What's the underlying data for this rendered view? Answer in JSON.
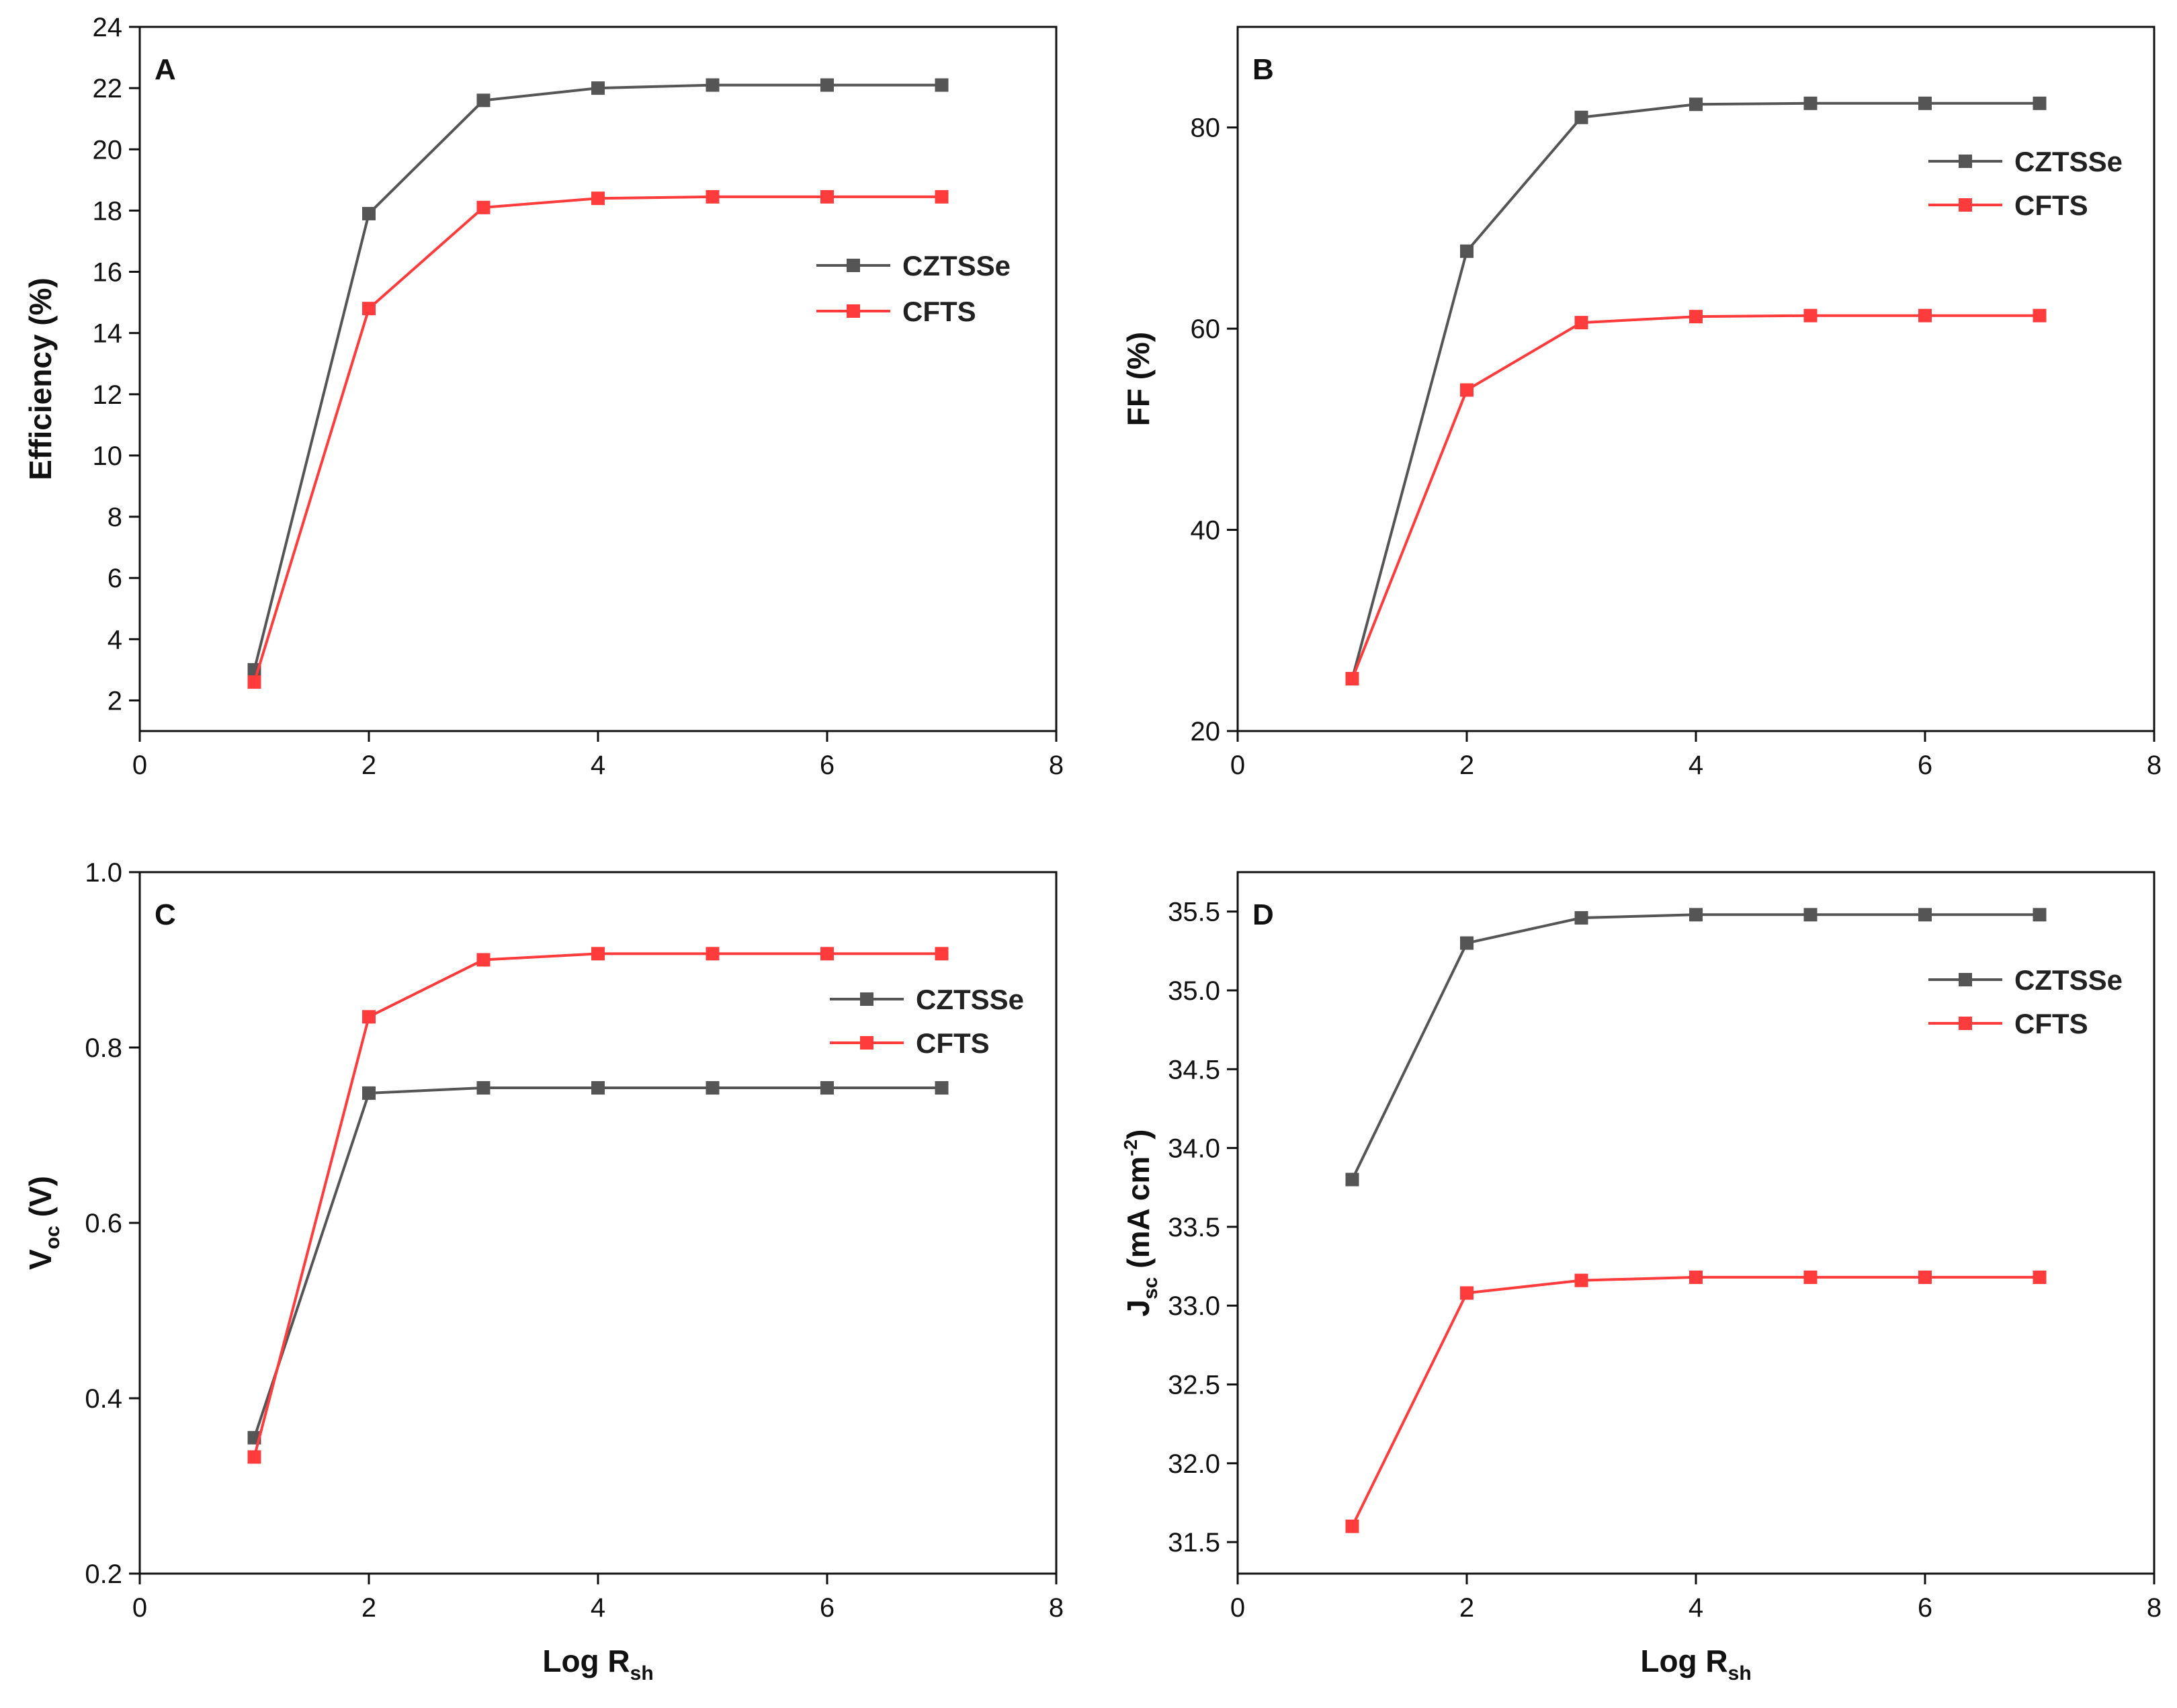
{
  "chart_data": [
    {
      "type": "line",
      "panel": "A",
      "title": "",
      "xlabel": "Log Rsh",
      "xlabel_main": "Log R",
      "xlabel_sub": "sh",
      "ylabel": "Efficiency (%)",
      "xlim": [
        0,
        8
      ],
      "ylim": [
        1,
        24
      ],
      "x_ticks": [
        0,
        2,
        4,
        6,
        8
      ],
      "y_ticks": [
        2,
        4,
        6,
        8,
        10,
        12,
        14,
        16,
        18,
        20,
        22,
        24
      ],
      "x": [
        1,
        2,
        3,
        4,
        5,
        6,
        7
      ],
      "series": [
        {
          "name": "CZTSSe",
          "color": "#555555",
          "values": [
            3.0,
            17.9,
            21.6,
            22.0,
            22.1,
            22.1,
            22.1
          ]
        },
        {
          "name": "CFTS",
          "color": "#ff3b3b",
          "values": [
            2.6,
            14.8,
            18.1,
            18.4,
            18.45,
            18.45,
            18.45
          ]
        }
      ],
      "legend_position": "right"
    },
    {
      "type": "line",
      "panel": "B",
      "title": "",
      "xlabel": "",
      "ylabel": "FF (%)",
      "xlim": [
        0,
        8
      ],
      "ylim": [
        20,
        90
      ],
      "x_ticks": [
        0,
        2,
        4,
        6,
        8
      ],
      "y_ticks": [
        20,
        40,
        60,
        80
      ],
      "x": [
        1,
        2,
        3,
        4,
        5,
        6,
        7
      ],
      "series": [
        {
          "name": "CZTSSe",
          "color": "#555555",
          "values": [
            25.2,
            67.7,
            81.0,
            82.3,
            82.4,
            82.4,
            82.4
          ]
        },
        {
          "name": "CFTS",
          "color": "#ff3b3b",
          "values": [
            25.2,
            53.9,
            60.6,
            61.2,
            61.3,
            61.3,
            61.3
          ]
        }
      ],
      "legend_position": "top-right"
    },
    {
      "type": "line",
      "panel": "C",
      "title": "",
      "xlabel": "Log Rsh",
      "xlabel_main": "Log R",
      "xlabel_sub": "sh",
      "ylabel": "Voc (V)",
      "ylabel_main": "V",
      "ylabel_sub": "oc",
      "ylabel_tail": " (V)",
      "xlim": [
        0,
        8
      ],
      "ylim": [
        0.2,
        1.0
      ],
      "x_ticks": [
        0,
        2,
        4,
        6,
        8
      ],
      "y_ticks": [
        0.2,
        0.4,
        0.6,
        0.8,
        1.0
      ],
      "x": [
        1,
        2,
        3,
        4,
        5,
        6,
        7
      ],
      "series": [
        {
          "name": "CZTSSe",
          "color": "#555555",
          "values": [
            0.355,
            0.748,
            0.754,
            0.754,
            0.754,
            0.754,
            0.754
          ]
        },
        {
          "name": "CFTS",
          "color": "#ff3b3b",
          "values": [
            0.333,
            0.835,
            0.9,
            0.907,
            0.907,
            0.907,
            0.907
          ]
        }
      ],
      "legend_position": "top-right"
    },
    {
      "type": "line",
      "panel": "D",
      "title": "",
      "xlabel": "Log Rsh",
      "xlabel_main": "Log R",
      "xlabel_sub": "sh",
      "ylabel": "Jsc (mA cm-2)",
      "ylabel_main": "J",
      "ylabel_sub": "sc",
      "ylabel_mid": " (mA cm",
      "ylabel_sup": "-2",
      "ylabel_tail": ")",
      "xlim": [
        0,
        8
      ],
      "ylim": [
        31.3,
        35.75
      ],
      "x_ticks": [
        0,
        2,
        4,
        6,
        8
      ],
      "y_ticks": [
        31.5,
        32.0,
        32.5,
        33.0,
        33.5,
        34.0,
        34.5,
        35.0,
        35.5
      ],
      "x": [
        1,
        2,
        3,
        4,
        5,
        6,
        7
      ],
      "series": [
        {
          "name": "CZTSSe",
          "color": "#555555",
          "values": [
            33.8,
            35.3,
            35.46,
            35.48,
            35.48,
            35.48,
            35.48
          ]
        },
        {
          "name": "CFTS",
          "color": "#ff3b3b",
          "values": [
            31.6,
            33.08,
            33.16,
            33.18,
            33.18,
            33.18,
            33.18
          ]
        }
      ],
      "legend_position": "top-right"
    }
  ]
}
